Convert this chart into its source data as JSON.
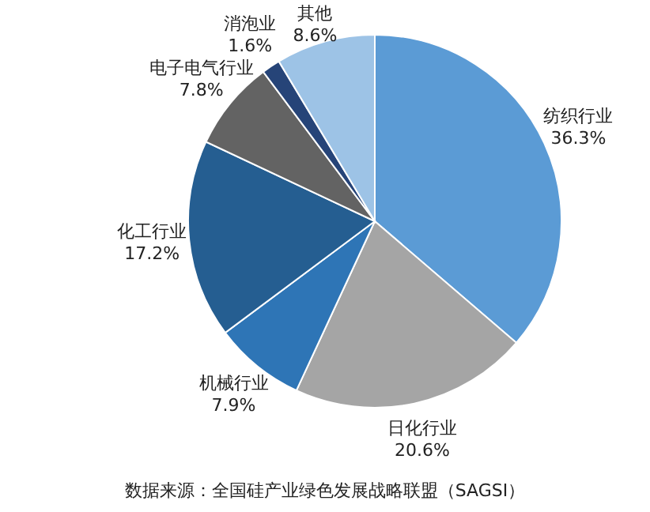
{
  "chart_data": {
    "type": "pie",
    "categories": [
      "纺织行业",
      "日化行业",
      "机械行业",
      "化工行业",
      "电子电气行业",
      "消泡业",
      "其他"
    ],
    "values": [
      36.3,
      20.6,
      7.9,
      17.2,
      7.8,
      1.6,
      8.6
    ],
    "value_labels": [
      "36.3%",
      "20.6%",
      "7.9%",
      "17.2%",
      "7.8%",
      "1.6%",
      "8.6%"
    ],
    "colors": [
      "#5b9bd5",
      "#a5a5a5",
      "#2e75b6",
      "#255e91",
      "#636363",
      "#264478",
      "#9dc3e6"
    ],
    "annotations": [
      "数据来源：全国硅产业绿色发展战略联盟（SAGSI）"
    ]
  }
}
